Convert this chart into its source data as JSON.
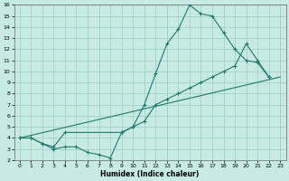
{
  "xlabel": "Humidex (Indice chaleur)",
  "xlim": [
    -0.5,
    23.5
  ],
  "ylim": [
    2,
    16
  ],
  "xticks": [
    0,
    1,
    2,
    3,
    4,
    5,
    6,
    7,
    8,
    9,
    10,
    11,
    12,
    13,
    14,
    15,
    16,
    17,
    18,
    19,
    20,
    21,
    22,
    23
  ],
  "yticks": [
    2,
    3,
    4,
    5,
    6,
    7,
    8,
    9,
    10,
    11,
    12,
    13,
    14,
    15,
    16
  ],
  "background_color": "#c8eae4",
  "grid_color": "#99ccbb",
  "line_color": "#1e7a6a",
  "curve1_x": [
    0,
    1,
    2,
    3,
    4,
    5,
    6,
    7,
    8,
    9,
    10,
    11,
    12,
    13,
    14,
    15,
    16,
    17,
    18,
    19,
    20,
    21,
    22
  ],
  "curve1_y": [
    4.0,
    4.0,
    3.5,
    3.0,
    3.2,
    3.2,
    2.7,
    2.5,
    2.2,
    4.5,
    5.0,
    7.0,
    9.8,
    12.5,
    13.8,
    16.0,
    15.2,
    15.0,
    13.5,
    12.0,
    11.0,
    10.8,
    9.5
  ],
  "curve2_x": [
    0,
    1,
    2,
    3,
    4,
    9,
    10,
    11,
    12,
    13,
    14,
    15,
    16,
    17,
    18,
    19,
    20,
    21,
    22
  ],
  "curve2_y": [
    4.0,
    4.0,
    3.5,
    3.2,
    4.5,
    4.5,
    5.0,
    5.5,
    7.0,
    7.5,
    8.0,
    8.5,
    9.0,
    9.5,
    10.0,
    10.5,
    12.5,
    11.0,
    9.5
  ],
  "line3_x": [
    0,
    23
  ],
  "line3_y": [
    4.0,
    9.5
  ]
}
